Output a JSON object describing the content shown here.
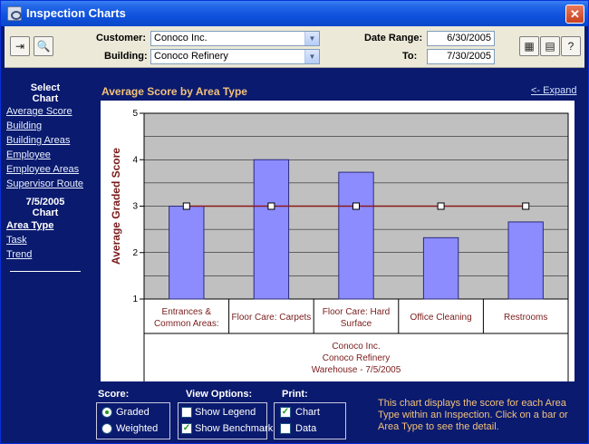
{
  "window": {
    "title": "Inspection Charts",
    "close_label": "✕"
  },
  "toolbar": {
    "customer_label": "Customer:",
    "customer_value": "Conoco Inc.",
    "building_label": "Building:",
    "building_value": "Conoco Refinery",
    "date_range_label": "Date Range:",
    "date_from": "6/30/2005",
    "to_label": "To:",
    "date_to": "7/30/2005"
  },
  "sidebar": {
    "select_heading_1": "Select",
    "select_heading_2": "Chart",
    "links": [
      "Average Score",
      "Building",
      "Building Areas",
      "Employee",
      "Employee Areas",
      "Supervisor Route"
    ],
    "date_heading": "7/5/2005",
    "chart_heading": "Chart",
    "date_links": [
      "Area Type",
      "Task",
      "Trend"
    ],
    "active_link": "Area Type"
  },
  "chart_header": {
    "title": "Average Score by Area Type",
    "expand_label": "<- Expand"
  },
  "chart_data": {
    "type": "bar",
    "title": "",
    "ylabel": "Average Graded Score",
    "xlabel": "",
    "ylim": [
      1,
      5
    ],
    "yticks": [
      "1",
      "2",
      "3",
      "4",
      "5"
    ],
    "grid": true,
    "categories": [
      "Entrances & Common Areas:",
      "Floor Care:  Carpets",
      "Floor Care:  Hard Surface",
      "Office Cleaning",
      "Restrooms"
    ],
    "category_lines": [
      [
        "Entrances &",
        "Common Areas:"
      ],
      [
        "Floor Care:  Carpets"
      ],
      [
        "Floor Care:  Hard",
        "Surface"
      ],
      [
        "Office Cleaning"
      ],
      [
        "Restrooms"
      ]
    ],
    "series": [
      {
        "name": "",
        "type": "bar",
        "values": [
          3.0,
          4.0,
          3.73,
          2.32,
          2.66
        ]
      },
      {
        "name": "",
        "type": "line",
        "values": [
          3,
          3,
          3,
          3,
          3
        ]
      }
    ],
    "group_label": [
      "Conoco Inc.",
      "Conoco Refinery",
      "Warehouse - 7/5/2005"
    ],
    "colors": {
      "bar": "#8c8cff",
      "bar_stroke": "#2b2b7a",
      "benchmark": "#8b1a1a",
      "plot_bg": "#c0c0c0",
      "axis_label": "#7a1c1c"
    }
  },
  "options": {
    "score_label": "Score:",
    "score_options": [
      {
        "label": "Graded",
        "selected": true
      },
      {
        "label": "Weighted",
        "selected": false
      }
    ],
    "view_label": "View Options:",
    "view_options": [
      {
        "label": "Show Legend",
        "checked": false
      },
      {
        "label": "Show Benchmark",
        "checked": true
      }
    ],
    "print_label": "Print:",
    "print_options": [
      {
        "label": "Chart",
        "checked": true
      },
      {
        "label": "Data",
        "checked": false
      }
    ]
  },
  "help_text": "This chart displays the score for each Area Type within an Inspection.  Click on a bar or Area Type to see the detail."
}
